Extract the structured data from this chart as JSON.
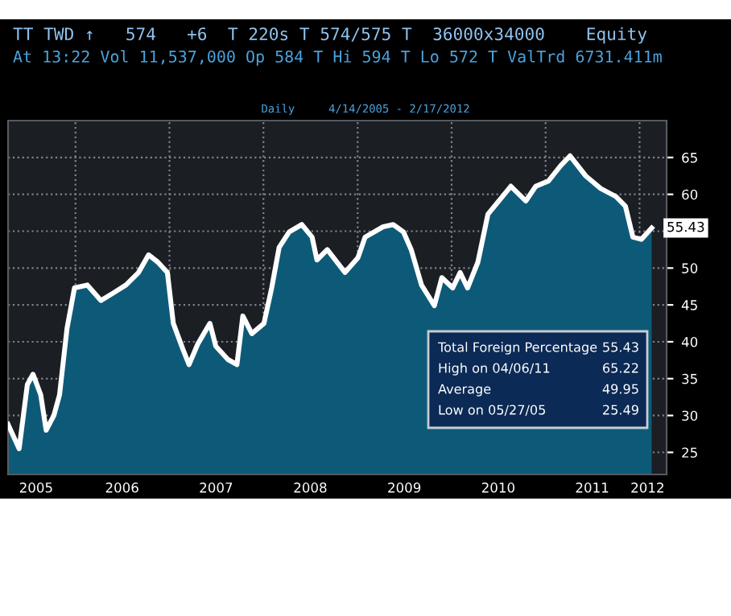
{
  "chart_data": {
    "type": "area",
    "title": "Daily     4/14/2005 - 2/17/2012",
    "x": [
      "2005-04-14",
      "2005-05-27",
      "2005-06-28",
      "2005-07-20",
      "2005-08-19",
      "2005-09-09",
      "2005-10-09",
      "2005-10-31",
      "2005-11-29",
      "2005-12-28",
      "2006-02-16",
      "2006-04-10",
      "2006-05-27",
      "2006-07-16",
      "2006-09-03",
      "2006-10-12",
      "2006-11-17",
      "2006-12-24",
      "2007-01-16",
      "2007-02-22",
      "2007-03-18",
      "2007-04-21",
      "2007-06-07",
      "2007-06-30",
      "2007-08-16",
      "2007-09-20",
      "2007-10-13",
      "2007-11-17",
      "2008-01-03",
      "2008-02-02",
      "2008-03-02",
      "2008-04-10",
      "2008-05-29",
      "2008-07-08",
      "2008-07-27",
      "2008-09-05",
      "2008-11-13",
      "2009-01-02",
      "2009-01-30",
      "2009-04-10",
      "2009-05-19",
      "2009-06-28",
      "2009-07-28",
      "2009-09-06",
      "2009-10-26",
      "2009-11-24",
      "2010-01-05",
      "2010-02-03",
      "2010-03-04",
      "2010-04-13",
      "2010-05-22",
      "2010-08-19",
      "2010-10-16",
      "2010-11-24",
      "2011-01-12",
      "2011-03-01",
      "2011-04-06",
      "2011-06-06",
      "2011-08-03",
      "2011-10-01",
      "2011-11-07",
      "2011-12-06",
      "2012-01-08",
      "2012-02-17"
    ],
    "series": [
      {
        "name": "Total Foreign Percentage",
        "color": "#0d5a78",
        "values": [
          28.8,
          25.5,
          34.2,
          35.6,
          32.8,
          28.0,
          30.0,
          32.8,
          41.8,
          47.3,
          47.7,
          45.6,
          46.6,
          47.7,
          49.4,
          51.8,
          50.8,
          49.4,
          42.5,
          39.0,
          36.9,
          39.7,
          42.5,
          39.4,
          37.6,
          36.9,
          43.5,
          41.1,
          42.5,
          47.3,
          52.8,
          54.9,
          55.9,
          54.2,
          51.1,
          52.5,
          49.4,
          51.4,
          54.2,
          55.6,
          55.9,
          54.9,
          52.5,
          47.7,
          44.9,
          48.7,
          47.3,
          49.4,
          47.3,
          50.8,
          57.3,
          61.1,
          59.1,
          61.1,
          61.8,
          63.9,
          65.22,
          62.5,
          60.8,
          59.7,
          58.4,
          54.2,
          53.9,
          55.43
        ]
      }
    ],
    "xlim": [
      "2005-04-14",
      "2012-04-15"
    ],
    "xticks": [
      {
        "value": "2005-08-01",
        "label": "2005"
      },
      {
        "value": "2006-07-01",
        "label": "2006"
      },
      {
        "value": "2007-07-01",
        "label": "2007"
      },
      {
        "value": "2008-07-01",
        "label": "2008"
      },
      {
        "value": "2009-07-01",
        "label": "2009"
      },
      {
        "value": "2010-07-01",
        "label": "2010"
      },
      {
        "value": "2011-07-01",
        "label": "2011"
      },
      {
        "value": "2012-02-01",
        "label": "2012"
      }
    ],
    "ylim": [
      22,
      70
    ],
    "yticks": [
      25,
      30,
      35,
      40,
      45,
      50,
      {
        "value": 55,
        "label": null
      },
      60,
      65
    ],
    "grid": "y",
    "legend": "bottom right",
    "ref_lines": [
      {
        "axis": "x",
        "value": "2006-01-01",
        "label": null,
        "color": "#7d838b",
        "line_style": "dotted"
      },
      {
        "axis": "x",
        "value": "2007-01-01",
        "label": null,
        "color": "#7d838b",
        "line_style": "dotted"
      },
      {
        "axis": "x",
        "value": "2008-01-01",
        "label": null,
        "color": "#7d838b",
        "line_style": "dotted"
      },
      {
        "axis": "x",
        "value": "2009-01-01",
        "label": null,
        "color": "#7d838b",
        "line_style": "dotted"
      },
      {
        "axis": "x",
        "value": "2010-01-01",
        "label": null,
        "color": "#7d838b",
        "line_style": "dotted"
      },
      {
        "axis": "x",
        "value": "2011-01-01",
        "label": null,
        "color": "#7d838b",
        "line_style": "dotted"
      },
      {
        "axis": "x",
        "value": "2012-01-01",
        "label": null,
        "color": "#7d838b",
        "line_style": "dotted"
      }
    ],
    "annotations": [
      "TT TWD ↑   574   +6  T 220s T 574/575 T  36000x34000    Equity",
      "At 13:22 Vol 11,537,000 Op 584 T Hi 594 T Lo 572 T ValTrd 6731.411m",
      "55.43",
      "High on 04/06/11 65.22",
      "Average 49.95",
      "Low on 05/27/05 25.49",
      {
        "text": "55.43",
        "x": "2012-02-17",
        "y": 55.43
      }
    ]
  }
}
